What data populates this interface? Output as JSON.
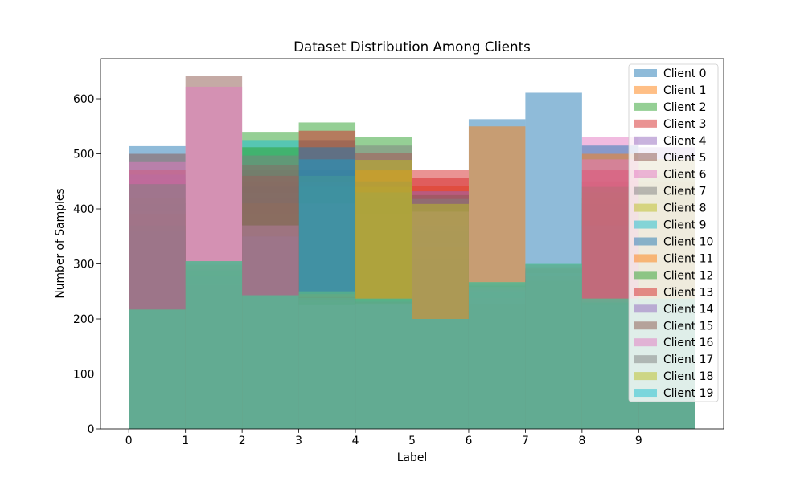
{
  "chart_data": {
    "type": "bar",
    "barmode": "overlay",
    "title": "Dataset Distribution Among Clients",
    "xlabel": "Label",
    "ylabel": "Number of Samples",
    "categories": [
      0,
      1,
      2,
      3,
      4,
      5,
      6,
      7,
      8,
      9
    ],
    "bin_width": 1,
    "xlim": [
      -0.5,
      10.5
    ],
    "ylim": [
      0,
      673
    ],
    "xticks": [
      0,
      1,
      2,
      3,
      4,
      5,
      6,
      7,
      8,
      9
    ],
    "yticks": [
      0,
      100,
      200,
      300,
      400,
      500,
      600
    ],
    "grid": false,
    "legend": "top-right",
    "series": [
      {
        "name": "Client 0",
        "color": "#1f77b4",
        "values": [
          514,
          290,
          420,
          470,
          420,
          350,
          563,
          280,
          400,
          400
        ]
      },
      {
        "name": "Client 1",
        "color": "#ff7f0e",
        "values": [
          380,
          270,
          380,
          430,
          400,
          441,
          240,
          270,
          380,
          420
        ]
      },
      {
        "name": "Client 2",
        "color": "#2ca02c",
        "values": [
          410,
          260,
          540,
          557,
          530,
          380,
          230,
          290,
          420,
          380
        ]
      },
      {
        "name": "Client 3",
        "color": "#d62728",
        "values": [
          350,
          280,
          450,
          542,
          502,
          471,
          255,
          260,
          450,
          450
        ]
      },
      {
        "name": "Client 4",
        "color": "#9467bd",
        "values": [
          395,
          300,
          400,
          450,
          380,
          300,
          220,
          285,
          360,
          512
        ]
      },
      {
        "name": "Client 5",
        "color": "#8c564b",
        "values": [
          330,
          255,
          470,
          525,
          410,
          360,
          260,
          275,
          410,
          430
        ]
      },
      {
        "name": "Client 6",
        "color": "#e377c2",
        "values": [
          453,
          295,
          360,
          410,
          390,
          390,
          245,
          295,
          530,
          410
        ]
      },
      {
        "name": "Client 7",
        "color": "#7f7f7f",
        "values": [
          300,
          285,
          430,
          440,
          515,
          320,
          235,
          265,
          390,
          460
        ]
      },
      {
        "name": "Client 8",
        "color": "#bcbd22",
        "values": [
          420,
          275,
          390,
          460,
          440,
          400,
          250,
          255,
          430,
          490
        ]
      },
      {
        "name": "Client 9",
        "color": "#17becf",
        "values": [
          360,
          265,
          525,
          490,
          430,
          340,
          225,
          288,
          370,
          230
        ]
      },
      {
        "name": "Client 10",
        "color": "#1f77b4",
        "values": [
          340,
          240,
          440,
          512,
          450,
          370,
          262,
          611,
          515,
          225
        ]
      },
      {
        "name": "Client 11",
        "color": "#ff7f0e",
        "values": [
          390,
          298,
          410,
          245,
          470,
          330,
          550,
          278,
          500,
          235
        ]
      },
      {
        "name": "Client 12",
        "color": "#2ca02c",
        "values": [
          370,
          288,
          512,
          230,
          236,
          310,
          248,
          268,
          440,
          220
        ]
      },
      {
        "name": "Client 13",
        "color": "#d62728",
        "values": [
          471,
          262,
          460,
          240,
          230,
          456,
          238,
          292,
          470,
          232
        ]
      },
      {
        "name": "Client 14",
        "color": "#9467bd",
        "values": [
          462,
          278,
          350,
          235,
          225,
          432,
          252,
          283,
          225,
          228
        ]
      },
      {
        "name": "Client 15",
        "color": "#8c564b",
        "values": [
          500,
          641,
          480,
          248,
          232,
          425,
          228,
          272,
          232,
          236
        ]
      },
      {
        "name": "Client 16",
        "color": "#e377c2",
        "values": [
          485,
          622,
          370,
          225,
          228,
          395,
          258,
          298,
          490,
          222
        ]
      },
      {
        "name": "Client 17",
        "color": "#7f7f7f",
        "values": [
          445,
          305,
          497,
          238,
          234,
          418,
          266,
          299,
          230,
          234
        ]
      },
      {
        "name": "Client 18",
        "color": "#bcbd22",
        "values": [
          217,
          305,
          243,
          250,
          489,
          409,
          267,
          300,
          237,
          237
        ]
      },
      {
        "name": "Client 19",
        "color": "#17becf",
        "values": [
          217,
          305,
          243,
          250,
          237,
          200,
          267,
          300,
          237,
          237
        ]
      }
    ]
  }
}
